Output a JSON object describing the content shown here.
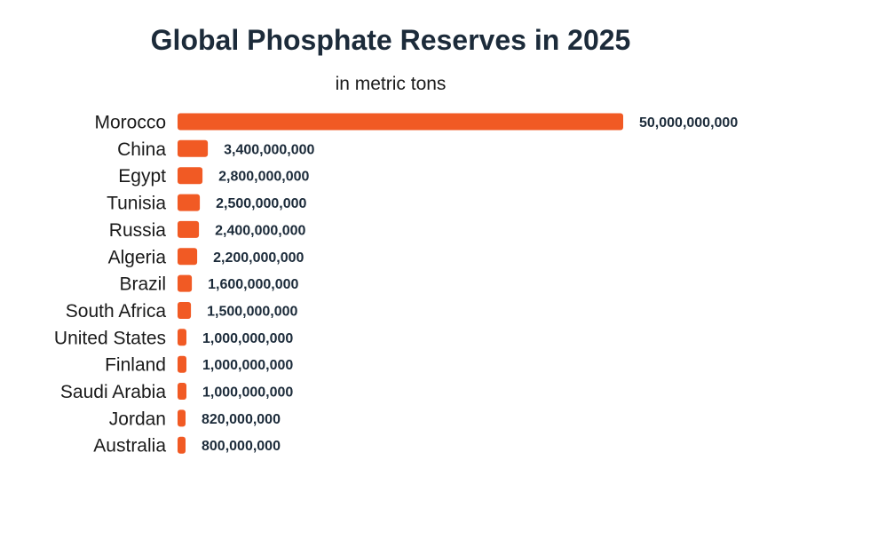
{
  "chart_data": {
    "type": "bar",
    "orientation": "horizontal",
    "title": "Global Phosphate Reserves in 2025",
    "subtitle": "in metric tons",
    "xlabel": "",
    "ylabel": "",
    "grid": false,
    "legend": "none",
    "xlim": [
      0,
      50000000000
    ],
    "categories": [
      "Morocco",
      "China",
      "Egypt",
      "Tunisia",
      "Russia",
      "Algeria",
      "Brazil",
      "South Africa",
      "United States",
      "Finland",
      "Saudi Arabia",
      "Jordan",
      "Australia"
    ],
    "values": [
      50000000000,
      3400000000,
      2800000000,
      2500000000,
      2400000000,
      2200000000,
      1600000000,
      1500000000,
      1000000000,
      1000000000,
      1000000000,
      820000000,
      800000000
    ],
    "data_labels": [
      "50,000,000,000",
      "3,400,000,000",
      "2,800,000,000",
      "2,500,000,000",
      "2,400,000,000",
      "2,200,000,000",
      "1,600,000,000",
      "1,500,000,000",
      "1,000,000,000",
      "1,000,000,000",
      "1,000,000,000",
      "820,000,000",
      "800,000,000"
    ]
  },
  "colors": {
    "bar": "#f15a24",
    "title": "#1c2b3a",
    "text": "#1a1a1a",
    "value_label": "#1c2b3a",
    "background": "#ffffff"
  }
}
